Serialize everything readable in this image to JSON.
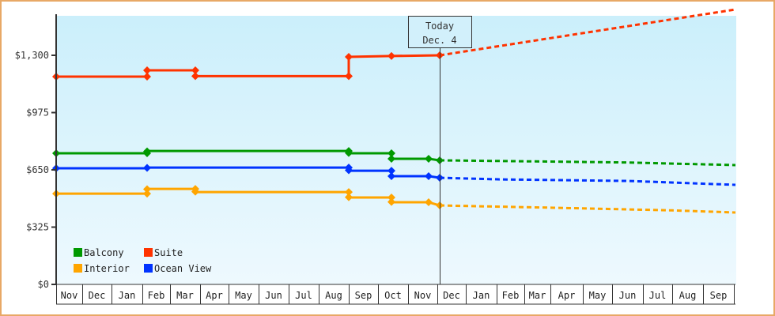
{
  "chart_data": {
    "type": "line",
    "title": "",
    "xlabel": "",
    "ylabel": "",
    "ylim": [
      0,
      1520
    ],
    "y_ticks": [
      {
        "value": 0,
        "label": "$0"
      },
      {
        "value": 325,
        "label": "$325"
      },
      {
        "value": 650,
        "label": "$650"
      },
      {
        "value": 975,
        "label": "$975"
      },
      {
        "value": 1300,
        "label": "$1,300"
      }
    ],
    "months": [
      "Nov",
      "Dec",
      "Jan",
      "Feb",
      "Mar",
      "Apr",
      "May",
      "Jun",
      "Jul",
      "Aug",
      "Sep",
      "Oct",
      "Nov",
      "Dec",
      "Jan",
      "Feb",
      "Mar",
      "Apr",
      "May",
      "Jun",
      "Jul",
      "Aug",
      "Sep"
    ],
    "month_edges": [
      71,
      104,
      141,
      180,
      215,
      253,
      289,
      327,
      365,
      403,
      441,
      478,
      516,
      553,
      589,
      628,
      663,
      696,
      737,
      774,
      813,
      850,
      889,
      928
    ],
    "today": {
      "label_line1": "Today",
      "label_line2": "Dec. 4",
      "x": 556
    },
    "legend": [
      {
        "name": "Balcony",
        "color": "#009900"
      },
      {
        "name": "Suite",
        "color": "#ff3300"
      },
      {
        "name": "Interior",
        "color": "#ffa500"
      },
      {
        "name": "Ocean View",
        "color": "#0033ff"
      }
    ],
    "series": [
      {
        "name": "Suite",
        "color": "#ff3300",
        "history": [
          [
            71,
            1179
          ],
          [
            186,
            1179
          ],
          [
            186,
            1215
          ],
          [
            247,
            1215
          ],
          [
            247,
            1182
          ],
          [
            441,
            1182
          ],
          [
            441,
            1291
          ],
          [
            495,
            1296
          ],
          [
            556,
            1300
          ]
        ],
        "markers": [
          [
            71,
            1179
          ],
          [
            186,
            1179
          ],
          [
            186,
            1215
          ],
          [
            247,
            1215
          ],
          [
            247,
            1182
          ],
          [
            441,
            1182
          ],
          [
            441,
            1291
          ],
          [
            495,
            1296
          ],
          [
            556,
            1300
          ]
        ],
        "forecast": [
          [
            556,
            1300
          ],
          [
            930,
            1560
          ]
        ]
      },
      {
        "name": "Balcony",
        "color": "#009900",
        "history": [
          [
            71,
            744
          ],
          [
            186,
            744
          ],
          [
            186,
            757
          ],
          [
            441,
            757
          ],
          [
            441,
            744
          ],
          [
            495,
            744
          ],
          [
            495,
            713
          ],
          [
            542,
            713
          ],
          [
            556,
            704
          ]
        ],
        "markers": [
          [
            71,
            744
          ],
          [
            186,
            744
          ],
          [
            186,
            755
          ],
          [
            441,
            757
          ],
          [
            441,
            746
          ],
          [
            495,
            744
          ],
          [
            495,
            713
          ],
          [
            542,
            713
          ],
          [
            556,
            704
          ]
        ],
        "forecast": [
          [
            556,
            704
          ],
          [
            695,
            697
          ],
          [
            790,
            692
          ],
          [
            930,
            677
          ]
        ]
      },
      {
        "name": "Ocean View",
        "color": "#0033ff",
        "history": [
          [
            71,
            659
          ],
          [
            186,
            659
          ],
          [
            186,
            663
          ],
          [
            441,
            663
          ],
          [
            441,
            645
          ],
          [
            495,
            645
          ],
          [
            495,
            614
          ],
          [
            542,
            614
          ],
          [
            556,
            605
          ]
        ],
        "markers": [
          [
            71,
            659
          ],
          [
            186,
            661
          ],
          [
            441,
            663
          ],
          [
            441,
            648
          ],
          [
            495,
            645
          ],
          [
            495,
            614
          ],
          [
            542,
            614
          ],
          [
            556,
            605
          ]
        ],
        "forecast": [
          [
            556,
            605
          ],
          [
            630,
            596
          ],
          [
            795,
            587
          ],
          [
            930,
            565
          ]
        ]
      },
      {
        "name": "Interior",
        "color": "#ffa500",
        "history": [
          [
            71,
            515
          ],
          [
            186,
            515
          ],
          [
            186,
            542
          ],
          [
            247,
            542
          ],
          [
            247,
            524
          ],
          [
            441,
            524
          ],
          [
            441,
            493
          ],
          [
            495,
            493
          ],
          [
            495,
            466
          ],
          [
            542,
            466
          ],
          [
            556,
            448
          ]
        ],
        "markers": [
          [
            71,
            515
          ],
          [
            186,
            515
          ],
          [
            186,
            540
          ],
          [
            247,
            542
          ],
          [
            247,
            526
          ],
          [
            441,
            524
          ],
          [
            441,
            495
          ],
          [
            495,
            493
          ],
          [
            495,
            468
          ],
          [
            542,
            466
          ],
          [
            556,
            448
          ]
        ],
        "forecast": [
          [
            556,
            448
          ],
          [
            700,
            435
          ],
          [
            850,
            420
          ],
          [
            930,
            408
          ]
        ]
      }
    ]
  }
}
